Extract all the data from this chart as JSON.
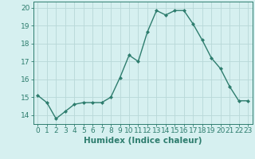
{
  "x": [
    0,
    1,
    2,
    3,
    4,
    5,
    6,
    7,
    8,
    9,
    10,
    11,
    12,
    13,
    14,
    15,
    16,
    17,
    18,
    19,
    20,
    21,
    22,
    23
  ],
  "y": [
    15.1,
    14.7,
    13.8,
    14.2,
    14.6,
    14.7,
    14.7,
    14.7,
    15.0,
    16.1,
    17.35,
    17.0,
    18.65,
    19.85,
    19.6,
    19.85,
    19.85,
    19.1,
    18.2,
    17.2,
    16.6,
    15.6,
    14.8,
    14.8
  ],
  "line_color": "#2e7d6e",
  "marker": "D",
  "marker_size": 2.0,
  "bg_color": "#d6f0f0",
  "grid_color": "#b8d8d8",
  "tick_color": "#2e7d6e",
  "xlabel": "Humidex (Indice chaleur)",
  "xlabel_fontsize": 7.5,
  "ylim": [
    13.5,
    20.35
  ],
  "yticks": [
    14,
    15,
    16,
    17,
    18,
    19,
    20
  ],
  "xticks": [
    0,
    1,
    2,
    3,
    4,
    5,
    6,
    7,
    8,
    9,
    10,
    11,
    12,
    13,
    14,
    15,
    16,
    17,
    18,
    19,
    20,
    21,
    22,
    23
  ],
  "xlim": [
    -0.5,
    23.5
  ],
  "line_width": 1.0,
  "tick_fontsize": 6.5
}
